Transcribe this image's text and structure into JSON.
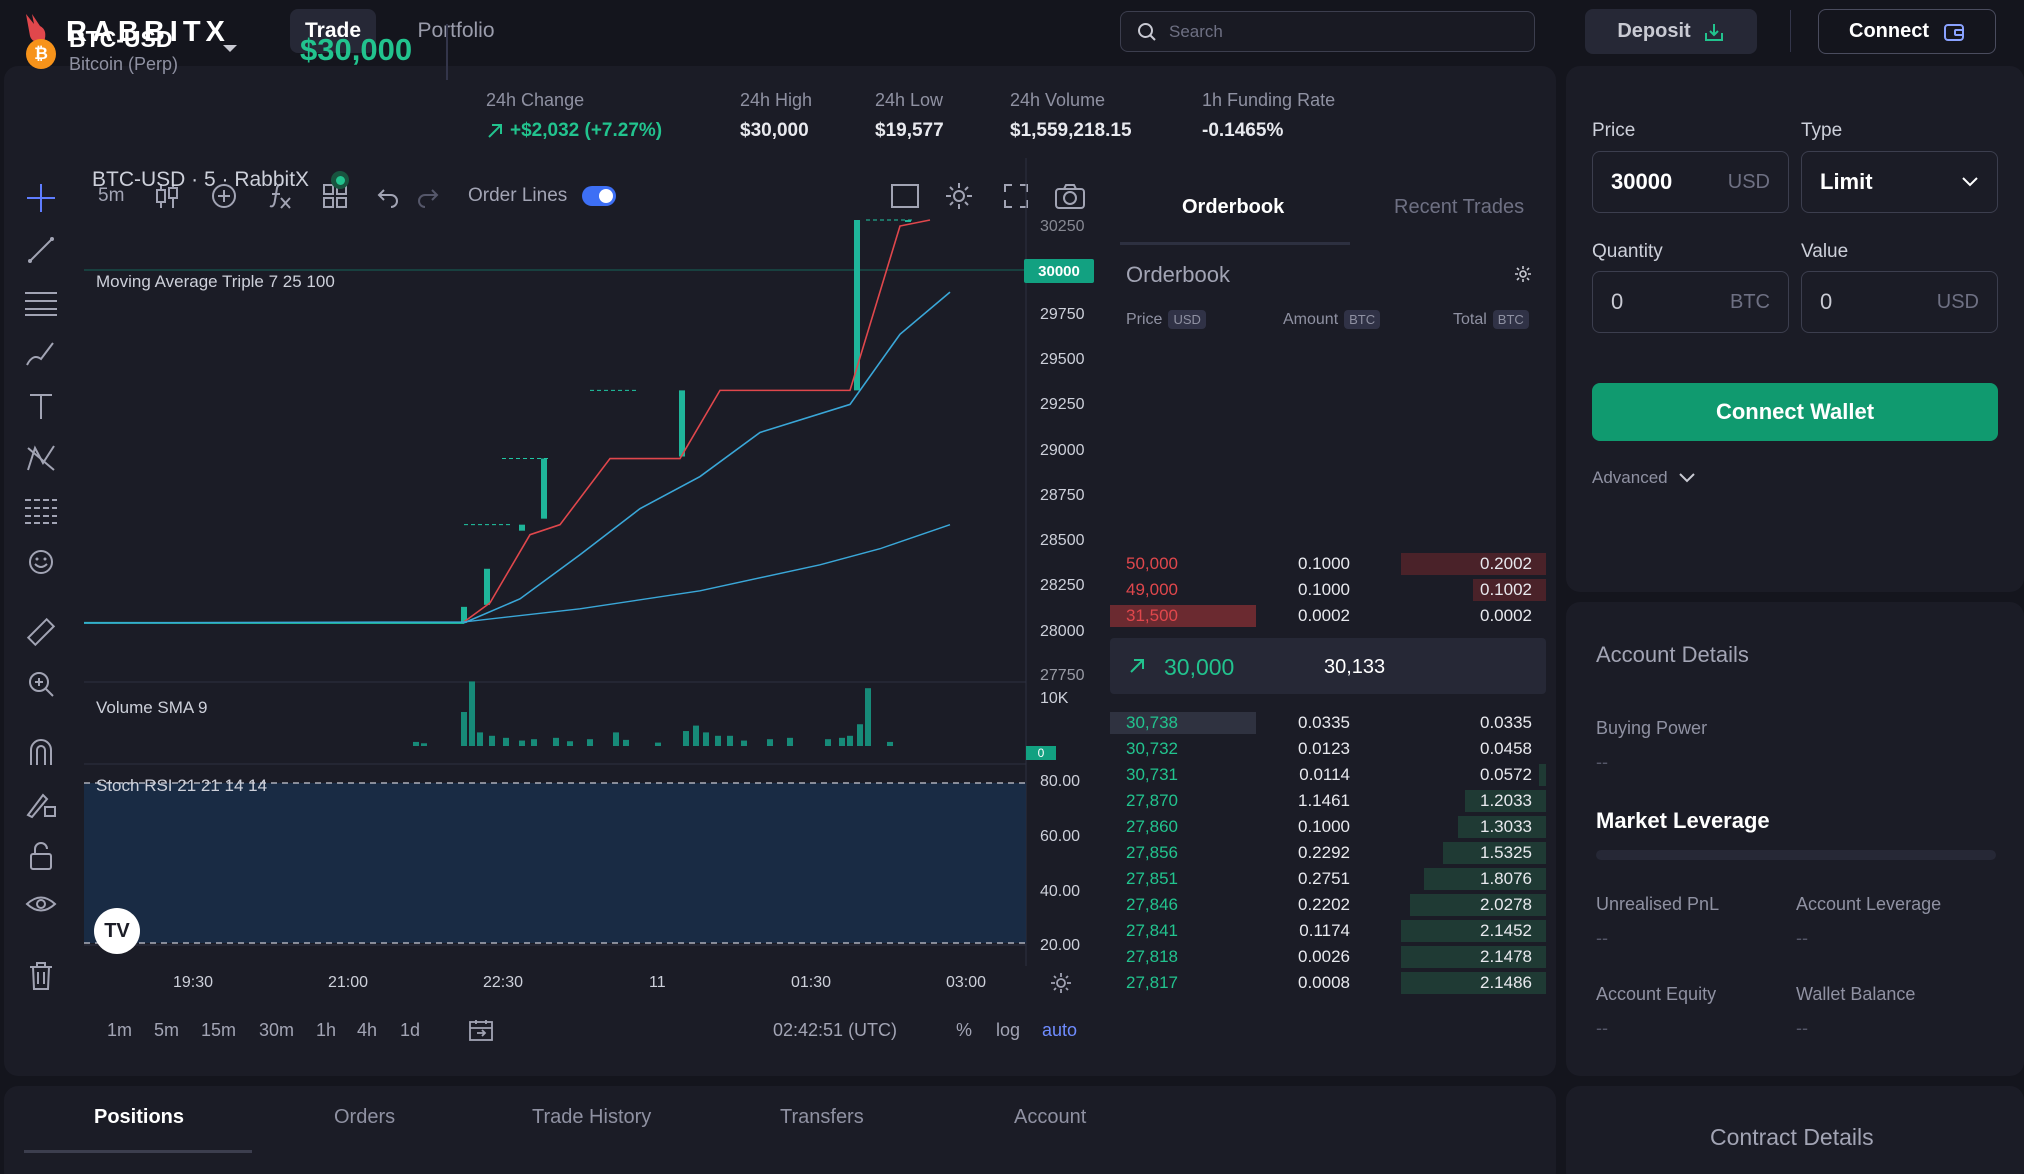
{
  "header": {
    "logo_text": "RABBITX",
    "nav": [
      {
        "label": "Trade",
        "active": true
      },
      {
        "label": "Portfolio",
        "active": false
      }
    ],
    "search_placeholder": "Search",
    "deposit_label": "Deposit",
    "connect_label": "Connect"
  },
  "ticker": {
    "symbol": "BTC-USD",
    "subtitle": "Bitcoin (Perp)",
    "coin_glyph": "₿",
    "last_price": "$30,000",
    "stats": [
      {
        "label": "24h Change",
        "value": "+$2,032  (+7.27%)",
        "positive": true
      },
      {
        "label": "24h High",
        "value": "$30,000"
      },
      {
        "label": "24h Low",
        "value": "$19,577"
      },
      {
        "label": "24h Volume",
        "value": "$1,559,218.15"
      },
      {
        "label": "1h Funding Rate",
        "value": "-0.1465%"
      }
    ]
  },
  "chart_toolbar": {
    "interval": "5m",
    "order_lines_label": "Order Lines",
    "order_lines_enabled": true
  },
  "chart": {
    "legend": "BTC-USD · 5 · RabbitX",
    "ma_label": "Moving Average Triple 7 25 100",
    "volume_label": "Volume SMA 9",
    "volume_axis_top": "10K",
    "volume_axis_zero": "0",
    "rsi_label": "Stoch RSI 21 21 14 14",
    "price_tag": "30000",
    "price_axis": [
      "30250",
      "29750",
      "29500",
      "29250",
      "29000",
      "28750",
      "28500",
      "28250",
      "28000",
      "27750"
    ],
    "rsi_axis": [
      "80.00",
      "60.00",
      "40.00",
      "20.00"
    ],
    "time_axis": [
      "19:30",
      "21:00",
      "22:30",
      "11",
      "01:30",
      "03:00"
    ],
    "ranges": [
      "1m",
      "5m",
      "15m",
      "30m",
      "1h",
      "4h",
      "1d"
    ],
    "clock": "02:42:51 (UTC)",
    "scale_options": [
      "%",
      "log",
      "auto"
    ],
    "tv_logo": "TV"
  },
  "chart_data": {
    "type": "candlestick",
    "series": [
      {
        "name": "BTC-USD",
        "description": "price steps from ~27,990 to 30,000"
      },
      {
        "name": "Moving Average Triple 7 25 100"
      },
      {
        "name": "Volume SMA 9"
      },
      {
        "name": "Stoch RSI 21 21 14 14"
      }
    ],
    "ylim": [
      27750,
      30250
    ],
    "current_price": 30000
  },
  "orderbook": {
    "tabs": [
      {
        "label": "Orderbook",
        "active": true
      },
      {
        "label": "Recent Trades",
        "active": false
      }
    ],
    "title": "Orderbook",
    "col_price": "Price",
    "col_price_unit": "USD",
    "col_amount": "Amount",
    "col_amount_unit": "BTC",
    "col_total": "Total",
    "col_total_unit": "BTC",
    "asks": [
      {
        "price": "50,000",
        "amount": "0.1000",
        "total": "0.2002",
        "depth": 1.0
      },
      {
        "price": "49,000",
        "amount": "0.1000",
        "total": "0.1002",
        "depth": 0.5
      },
      {
        "price": "31,500",
        "amount": "0.0002",
        "total": "0.0002",
        "depth": 0.0
      }
    ],
    "mid_price": "30,000",
    "mid_mark": "30,133",
    "bids": [
      {
        "price": "30,738",
        "amount": "0.0335",
        "total": "0.0335",
        "depth": 0.0
      },
      {
        "price": "30,732",
        "amount": "0.0123",
        "total": "0.0458",
        "depth": 0.0
      },
      {
        "price": "30,731",
        "amount": "0.0114",
        "total": "0.0572",
        "depth": 0.05
      },
      {
        "price": "27,870",
        "amount": "1.1461",
        "total": "1.2033",
        "depth": 0.56
      },
      {
        "price": "27,860",
        "amount": "0.1000",
        "total": "1.3033",
        "depth": 0.61
      },
      {
        "price": "27,856",
        "amount": "0.2292",
        "total": "1.5325",
        "depth": 0.71
      },
      {
        "price": "27,851",
        "amount": "0.2751",
        "total": "1.8076",
        "depth": 0.84
      },
      {
        "price": "27,846",
        "amount": "0.2202",
        "total": "2.0278",
        "depth": 0.94
      },
      {
        "price": "27,841",
        "amount": "0.1174",
        "total": "2.1452",
        "depth": 1.0
      },
      {
        "price": "27,818",
        "amount": "0.0026",
        "total": "2.1478",
        "depth": 1.0
      },
      {
        "price": "27,817",
        "amount": "0.0008",
        "total": "2.1486",
        "depth": 1.0
      }
    ]
  },
  "order_form": {
    "price_label": "Price",
    "price_value": "30000",
    "price_unit": "USD",
    "type_label": "Type",
    "type_value": "Limit",
    "quantity_label": "Quantity",
    "quantity_value": "0",
    "quantity_unit": "BTC",
    "value_label": "Value",
    "value_value": "0",
    "value_unit": "USD",
    "connect_wallet_label": "Connect Wallet",
    "advanced_label": "Advanced"
  },
  "account": {
    "title": "Account Details",
    "buying_power_label": "Buying Power",
    "buying_power_value": "--",
    "leverage_title": "Market Leverage",
    "unrealised_label": "Unrealised PnL",
    "unrealised_value": "--",
    "account_leverage_label": "Account Leverage",
    "account_leverage_value": "--",
    "equity_label": "Account Equity",
    "equity_value": "--",
    "wallet_label": "Wallet Balance",
    "wallet_value": "--"
  },
  "bottom_tabs": [
    {
      "label": "Positions",
      "active": true
    },
    {
      "label": "Orders",
      "active": false
    },
    {
      "label": "Trade History",
      "active": false
    },
    {
      "label": "Transfers",
      "active": false
    },
    {
      "label": "Account",
      "active": false
    }
  ],
  "contract_title": "Contract Details",
  "colors": {
    "background": "#14151d",
    "panel": "#1b1c26",
    "green": "#22c38e",
    "red": "#e0474c",
    "accent_blue": "#3d6ff5",
    "button_green": "#109a6f"
  }
}
